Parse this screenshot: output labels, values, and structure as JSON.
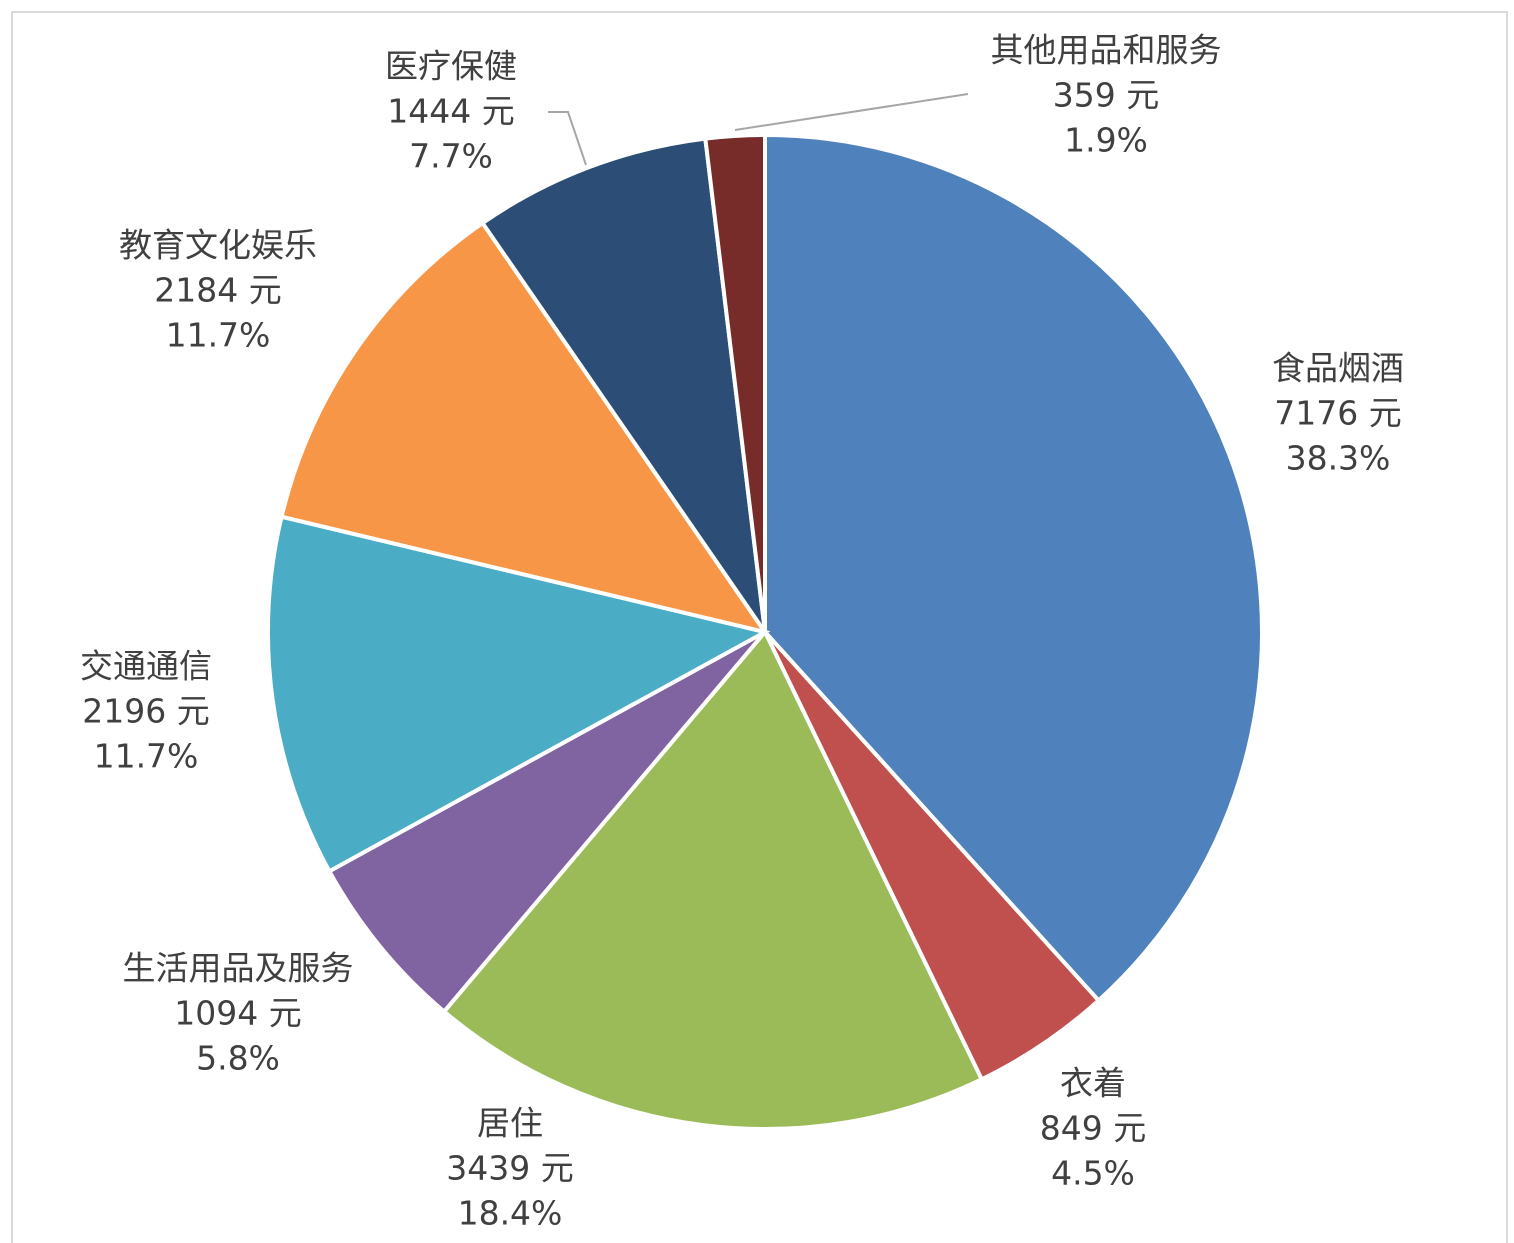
{
  "chart_data": {
    "type": "pie",
    "categories": [
      "食品烟酒",
      "衣着",
      "居住",
      "生活用品及服务",
      "交通通信",
      "教育文化娱乐",
      "医疗保健",
      "其他用品和服务"
    ],
    "values": [
      7176,
      849,
      3439,
      1094,
      2196,
      2184,
      1444,
      359
    ],
    "value_labels": [
      "7176 元",
      "849 元",
      "3439 元",
      "1094 元",
      "2196 元",
      "2184 元",
      "1444 元",
      "359 元"
    ],
    "shares": [
      38.3,
      4.5,
      18.4,
      5.8,
      11.7,
      11.7,
      7.7,
      1.9
    ],
    "share_labels": [
      "38.3%",
      "4.5%",
      "18.4%",
      "5.8%",
      "11.7%",
      "11.7%",
      "7.7%",
      "1.9%"
    ],
    "colors": [
      "#4f81bd",
      "#c0504d",
      "#9bbb59",
      "#8064a2",
      "#4bacc6",
      "#f79646",
      "#2c4d75",
      "#772c2a"
    ]
  }
}
